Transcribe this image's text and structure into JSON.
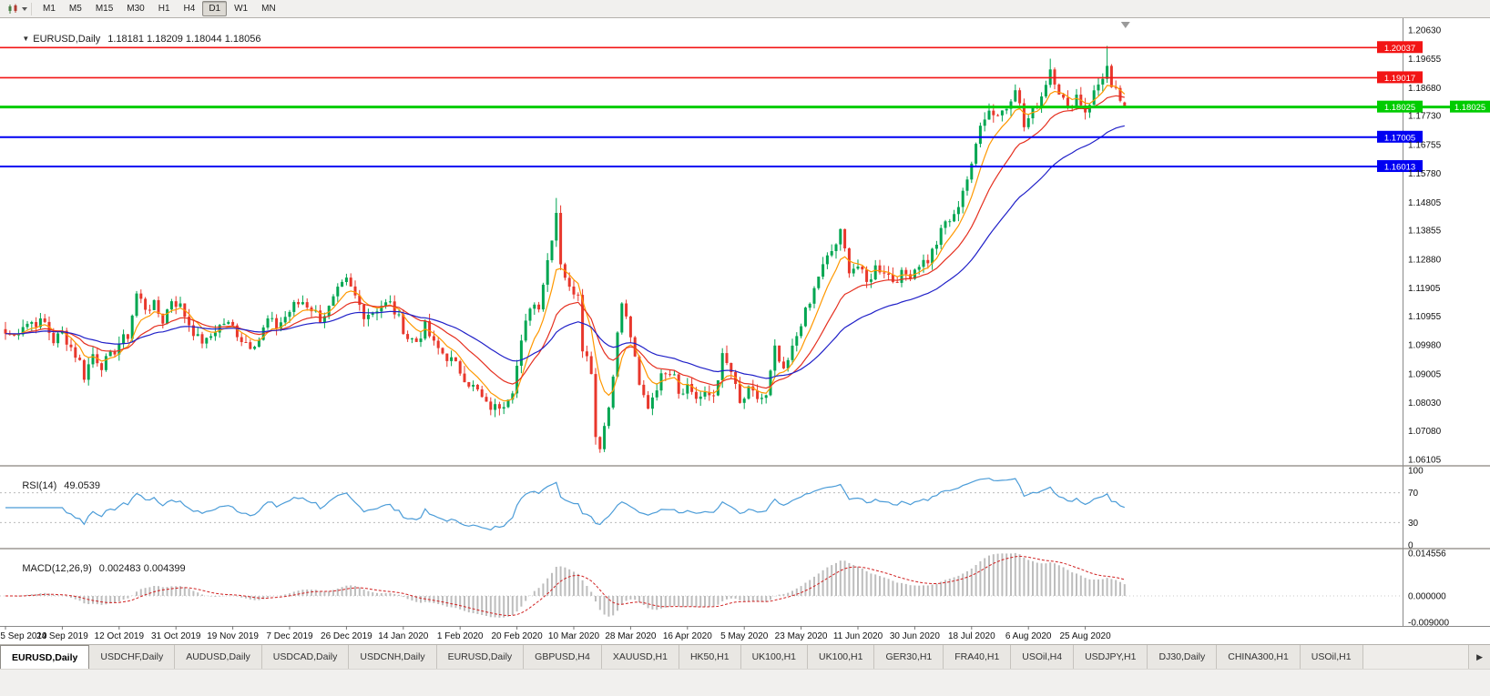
{
  "toolbar": {
    "timeframes": [
      {
        "label": "M1",
        "active": false
      },
      {
        "label": "M5",
        "active": false
      },
      {
        "label": "M15",
        "active": false
      },
      {
        "label": "M30",
        "active": false
      },
      {
        "label": "H1",
        "active": false
      },
      {
        "label": "H4",
        "active": false
      },
      {
        "label": "D1",
        "active": true
      },
      {
        "label": "W1",
        "active": false
      },
      {
        "label": "MN",
        "active": false
      }
    ]
  },
  "chart": {
    "type": "candlestick",
    "collapse_glyph": "▼",
    "symbol_title": "EURUSD,Daily",
    "ohlc_text": "1.18181 1.18209 1.18044 1.18056",
    "up_color": "#00A651",
    "down_color": "#E8372C",
    "price_top": 1.2103,
    "price_bottom": 1.0592,
    "price_axis_labels": [
      "1.20630",
      "1.19655",
      "1.18680",
      "1.17730",
      "1.16755",
      "1.15780",
      "1.14805",
      "1.13855",
      "1.12880",
      "1.11905",
      "1.10955",
      "1.09980",
      "1.09005",
      "1.08030",
      "1.07080",
      "1.06105"
    ],
    "hlines": [
      {
        "price": 1.20037,
        "label": "1.20037",
        "color": "#F21515",
        "width": 1.6,
        "right_tag": false
      },
      {
        "price": 1.19017,
        "label": "1.19017",
        "color": "#F21515",
        "width": 1.6,
        "right_tag": false
      },
      {
        "price": 1.18025,
        "label": "1.18025",
        "color": "#00CC00",
        "width": 3,
        "right_tag": true
      },
      {
        "price": 1.17005,
        "label": "1.17005",
        "color": "#0000F2",
        "width": 2,
        "right_tag": false
      },
      {
        "price": 1.16013,
        "label": "1.16013",
        "color": "#0000F2",
        "width": 2,
        "right_tag": false
      }
    ],
    "ma": [
      {
        "name": "ma-fast-line",
        "period": 7,
        "color": "#FF9800"
      },
      {
        "name": "ma-mid-line",
        "period": 18,
        "color": "#E53020"
      },
      {
        "name": "ma-slow-line",
        "period": 40,
        "color": "#2020C8"
      }
    ],
    "candle_count": 257,
    "anchors": [
      [
        0,
        1.1036
      ],
      [
        2,
        1.1028
      ],
      [
        4,
        1.1068
      ],
      [
        6,
        1.1075
      ],
      [
        9,
        1.1072
      ],
      [
        11,
        1.1012
      ],
      [
        13,
        1.104
      ],
      [
        15,
        1.099
      ],
      [
        17,
        1.094
      ],
      [
        18,
        1.0893
      ],
      [
        20,
        1.0967
      ],
      [
        22,
        1.093
      ],
      [
        24,
        1.0957
      ],
      [
        26,
        1.1003
      ],
      [
        28,
        1.103
      ],
      [
        30,
        1.117
      ],
      [
        32,
        1.1125
      ],
      [
        34,
        1.1131
      ],
      [
        36,
        1.108
      ],
      [
        38,
        1.1152
      ],
      [
        40,
        1.1128
      ],
      [
        42,
        1.107
      ],
      [
        44,
        1.1018
      ],
      [
        46,
        1.1007
      ],
      [
        48,
        1.105
      ],
      [
        50,
        1.1073
      ],
      [
        52,
        1.1058
      ],
      [
        54,
        1.1018
      ],
      [
        56,
        1.1
      ],
      [
        58,
        1.1018
      ],
      [
        60,
        1.1082
      ],
      [
        62,
        1.106
      ],
      [
        64,
        1.1093
      ],
      [
        66,
        1.113
      ],
      [
        68,
        1.1145
      ],
      [
        70,
        1.1122
      ],
      [
        72,
        1.1088
      ],
      [
        74,
        1.112
      ],
      [
        76,
        1.1177
      ],
      [
        78,
        1.1212
      ],
      [
        80,
        1.116
      ],
      [
        82,
        1.1103
      ],
      [
        84,
        1.111
      ],
      [
        86,
        1.1134
      ],
      [
        88,
        1.1136
      ],
      [
        90,
        1.1084
      ],
      [
        92,
        1.1023
      ],
      [
        94,
        1.101
      ],
      [
        96,
        1.106
      ],
      [
        98,
        1.0998
      ],
      [
        100,
        1.097
      ],
      [
        102,
        1.0945
      ],
      [
        104,
        1.091
      ],
      [
        106,
        1.087
      ],
      [
        108,
        1.084
      ],
      [
        110,
        1.0792
      ],
      [
        112,
        1.0785
      ],
      [
        114,
        1.0805
      ],
      [
        116,
        1.0852
      ],
      [
        118,
        1.1
      ],
      [
        120,
        1.1134
      ],
      [
        122,
        1.1135
      ],
      [
        124,
        1.1285
      ],
      [
        126,
        1.145
      ],
      [
        127,
        1.1281
      ],
      [
        129,
        1.1184
      ],
      [
        131,
        1.118
      ],
      [
        132,
        1.0995
      ],
      [
        134,
        1.0915
      ],
      [
        135,
        1.069
      ],
      [
        136,
        1.066
      ],
      [
        138,
        1.0789
      ],
      [
        140,
        1.103
      ],
      [
        141,
        1.114
      ],
      [
        143,
        1.103
      ],
      [
        145,
        1.0855
      ],
      [
        147,
        1.0791
      ],
      [
        149,
        1.086
      ],
      [
        151,
        1.0915
      ],
      [
        153,
        1.091
      ],
      [
        154,
        1.084
      ],
      [
        156,
        1.0862
      ],
      [
        158,
        1.082
      ],
      [
        160,
        1.0823
      ],
      [
        162,
        1.083
      ],
      [
        164,
        1.0955
      ],
      [
        166,
        1.0906
      ],
      [
        168,
        1.0795
      ],
      [
        170,
        1.084
      ],
      [
        172,
        1.0818
      ],
      [
        174,
        1.082
      ],
      [
        176,
        1.098
      ],
      [
        178,
        1.09
      ],
      [
        180,
        1.0983
      ],
      [
        182,
        1.1077
      ],
      [
        184,
        1.1135
      ],
      [
        186,
        1.1233
      ],
      [
        188,
        1.129
      ],
      [
        190,
        1.134
      ],
      [
        191,
        1.1375
      ],
      [
        193,
        1.1257
      ],
      [
        195,
        1.1264
      ],
      [
        197,
        1.1205
      ],
      [
        199,
        1.126
      ],
      [
        201,
        1.1251
      ],
      [
        203,
        1.1218
      ],
      [
        205,
        1.1234
      ],
      [
        207,
        1.1239
      ],
      [
        209,
        1.1274
      ],
      [
        211,
        1.1284
      ],
      [
        213,
        1.1344
      ],
      [
        215,
        1.1412
      ],
      [
        217,
        1.1428
      ],
      [
        219,
        1.1525
      ],
      [
        221,
        1.1596
      ],
      [
        223,
        1.1755
      ],
      [
        225,
        1.1791
      ],
      [
        227,
        1.1778
      ],
      [
        229,
        1.1803
      ],
      [
        231,
        1.1876
      ],
      [
        233,
        1.1736
      ],
      [
        235,
        1.1789
      ],
      [
        237,
        1.1842
      ],
      [
        239,
        1.1934
      ],
      [
        241,
        1.1859
      ],
      [
        243,
        1.1792
      ],
      [
        245,
        1.1843
      ],
      [
        247,
        1.179
      ],
      [
        249,
        1.185
      ],
      [
        252,
        1.1937
      ],
      [
        253,
        1.1855
      ],
      [
        254,
        1.185
      ],
      [
        255,
        1.1828
      ],
      [
        256,
        1.1806
      ]
    ],
    "wick_overrides": [
      {
        "day": 126,
        "high": 1.1495
      },
      {
        "day": 136,
        "low": 1.0636
      },
      {
        "day": 239,
        "high": 1.1966
      },
      {
        "day": 252,
        "high": 1.2009
      }
    ],
    "last_candle": {
      "o": 1.18181,
      "h": 1.18209,
      "l": 1.18044,
      "c": 1.18056
    }
  },
  "rsi": {
    "title": "RSI(14)",
    "value": "49.0539",
    "period": 14,
    "levels": [
      70,
      30
    ],
    "axis_labels": [
      {
        "v": 100,
        "label": "100"
      },
      {
        "v": 70,
        "label": "70"
      },
      {
        "v": 30,
        "label": "30"
      },
      {
        "v": 0,
        "label": "0"
      }
    ],
    "color": "#4B9CD8"
  },
  "macd": {
    "title": "MACD(12,26,9)",
    "values": "0.002483 0.004399",
    "fast": 12,
    "slow": 26,
    "signal": 9,
    "max": 0.014556,
    "min": -0.009,
    "axis_labels": [
      {
        "v": 0.014556,
        "label": "0.014556"
      },
      {
        "v": 0,
        "label": "0.000000"
      },
      {
        "v": -0.009,
        "label": "-0.009000"
      }
    ],
    "hist_color": "#BDBDBD",
    "signal_color": "#D02020"
  },
  "dates": [
    {
      "day": 0,
      "label": "5 Sep 2019"
    },
    {
      "day": 13,
      "label": "24 Sep 2019"
    },
    {
      "day": 26,
      "label": "12 Oct 2019"
    },
    {
      "day": 39,
      "label": "31 Oct 2019"
    },
    {
      "day": 52,
      "label": "19 Nov 2019"
    },
    {
      "day": 65,
      "label": "7 Dec 2019"
    },
    {
      "day": 78,
      "label": "26 Dec 2019"
    },
    {
      "day": 91,
      "label": "14 Jan 2020"
    },
    {
      "day": 104,
      "label": "1 Feb 2020"
    },
    {
      "day": 117,
      "label": "20 Feb 2020"
    },
    {
      "day": 130,
      "label": "10 Mar 2020"
    },
    {
      "day": 143,
      "label": "28 Mar 2020"
    },
    {
      "day": 156,
      "label": "16 Apr 2020"
    },
    {
      "day": 169,
      "label": "5 May 2020"
    },
    {
      "day": 182,
      "label": "23 May 2020"
    },
    {
      "day": 195,
      "label": "11 Jun 2020"
    },
    {
      "day": 208,
      "label": "30 Jun 2020"
    },
    {
      "day": 221,
      "label": "18 Jul 2020"
    },
    {
      "day": 234,
      "label": "6 Aug 2020"
    },
    {
      "day": 247,
      "label": "25 Aug 2020"
    }
  ],
  "tabbar": {
    "scroll_icon": "▶",
    "tabs": [
      {
        "label": "EURUSD,Daily",
        "active": true
      },
      {
        "label": "USDCHF,Daily",
        "active": false
      },
      {
        "label": "AUDUSD,Daily",
        "active": false
      },
      {
        "label": "USDCAD,Daily",
        "active": false
      },
      {
        "label": "USDCNH,Daily",
        "active": false
      },
      {
        "label": "EURUSD,Daily",
        "active": false
      },
      {
        "label": "GBPUSD,H4",
        "active": false
      },
      {
        "label": "XAUUSD,H1",
        "active": false
      },
      {
        "label": "HK50,H1",
        "active": false
      },
      {
        "label": "UK100,H1",
        "active": false
      },
      {
        "label": "UK100,H1",
        "active": false
      },
      {
        "label": "GER30,H1",
        "active": false
      },
      {
        "label": "FRA40,H1",
        "active": false
      },
      {
        "label": "USOil,H4",
        "active": false
      },
      {
        "label": "USDJPY,H1",
        "active": false
      },
      {
        "label": "DJ30,Daily",
        "active": false
      },
      {
        "label": "CHINA300,H1",
        "active": false
      },
      {
        "label": "USOil,H1",
        "active": false
      }
    ]
  }
}
